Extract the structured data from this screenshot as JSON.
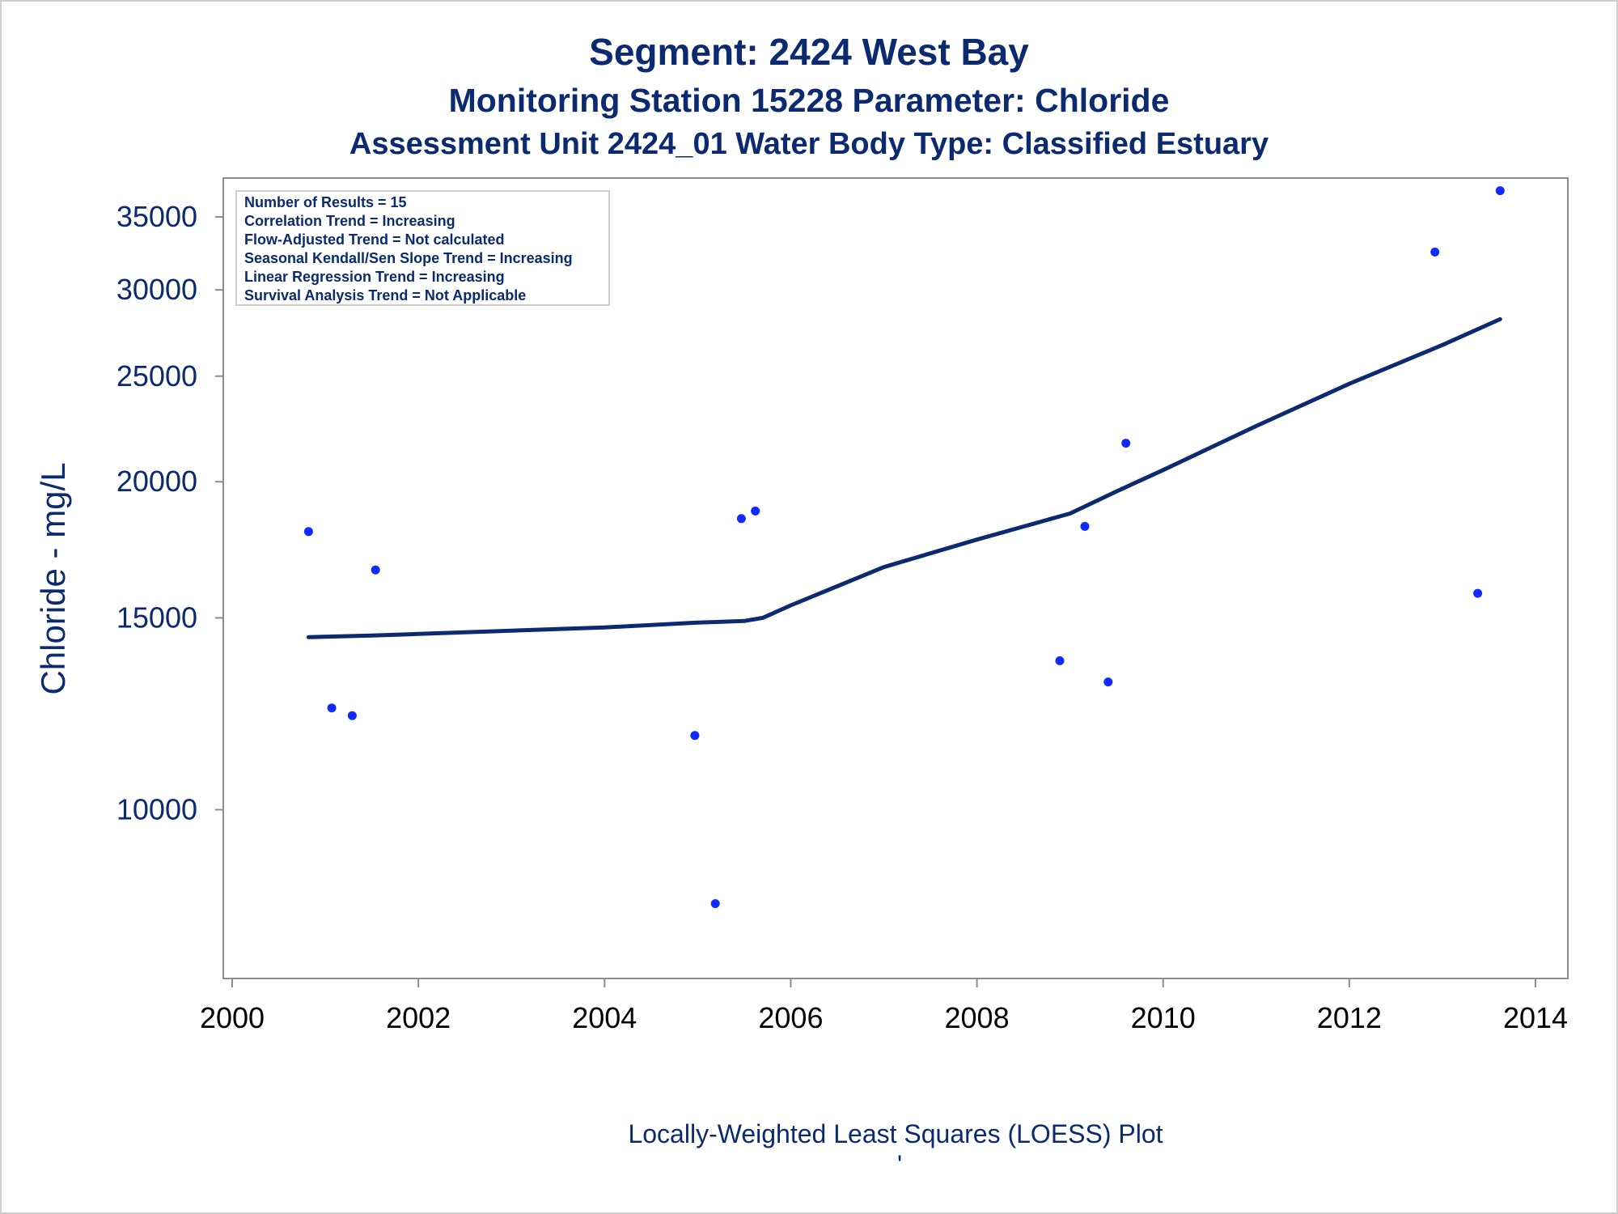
{
  "chart_data": {
    "type": "scatter",
    "title": "Segment: 2424  West Bay",
    "subtitle": "Monitoring Station 15228 Parameter: Chloride",
    "subtitle2": "Assessment Unit 2424_01   Water Body Type: Classified Estuary",
    "xlabel": "",
    "ylabel": "Chloride - mg/L",
    "footnote": "Locally-Weighted Least Squares (LOESS) Plot",
    "footnote_mark": "'",
    "y_scale": "log",
    "xlim": [
      2000,
      2014.2
    ],
    "ylim": [
      7000,
      38000
    ],
    "x_ticks": [
      2000,
      2002,
      2004,
      2006,
      2008,
      2010,
      2012,
      2014
    ],
    "y_ticks": [
      10000,
      15000,
      20000,
      25000,
      30000,
      35000
    ],
    "grid": false,
    "legend_position": "top-left",
    "stats_box": [
      "Number of Results = 15",
      "Correlation Trend = Increasing",
      "Flow-Adjusted Trend = Not calculated",
      "Seasonal Kendall/Sen Slope Trend = Increasing",
      "Linear Regression Trend = Increasing",
      "Survival Analysis Trend = Not Applicable"
    ],
    "series": [
      {
        "kind": "points",
        "x": [
          2000.82,
          2001.07,
          2001.29,
          2001.54,
          2004.97,
          2005.19,
          2005.47,
          2005.62,
          2008.89,
          2009.16,
          2009.41,
          2009.6,
          2012.92,
          2013.38,
          2013.62
        ],
        "y": [
          18000,
          12400,
          12200,
          16600,
          11700,
          8200,
          18500,
          18800,
          13700,
          18200,
          13100,
          21700,
          32500,
          15800,
          37000
        ]
      },
      {
        "kind": "loess",
        "x": [
          2000.82,
          2001.5,
          2002.0,
          2003.0,
          2004.0,
          2005.0,
          2005.5,
          2005.7,
          2006.0,
          2007.0,
          2008.0,
          2009.0,
          2009.5,
          2010.0,
          2011.0,
          2012.0,
          2013.0,
          2013.62
        ],
        "y": [
          14400,
          14450,
          14500,
          14600,
          14700,
          14850,
          14900,
          15000,
          15400,
          16700,
          17700,
          18700,
          19600,
          20500,
          22500,
          24600,
          26700,
          28200
        ]
      }
    ],
    "colors": {
      "points": "#0f2bff",
      "line": "#0b2a6f",
      "text": "#0b2a6f",
      "axis": "#8c8c8c"
    }
  }
}
